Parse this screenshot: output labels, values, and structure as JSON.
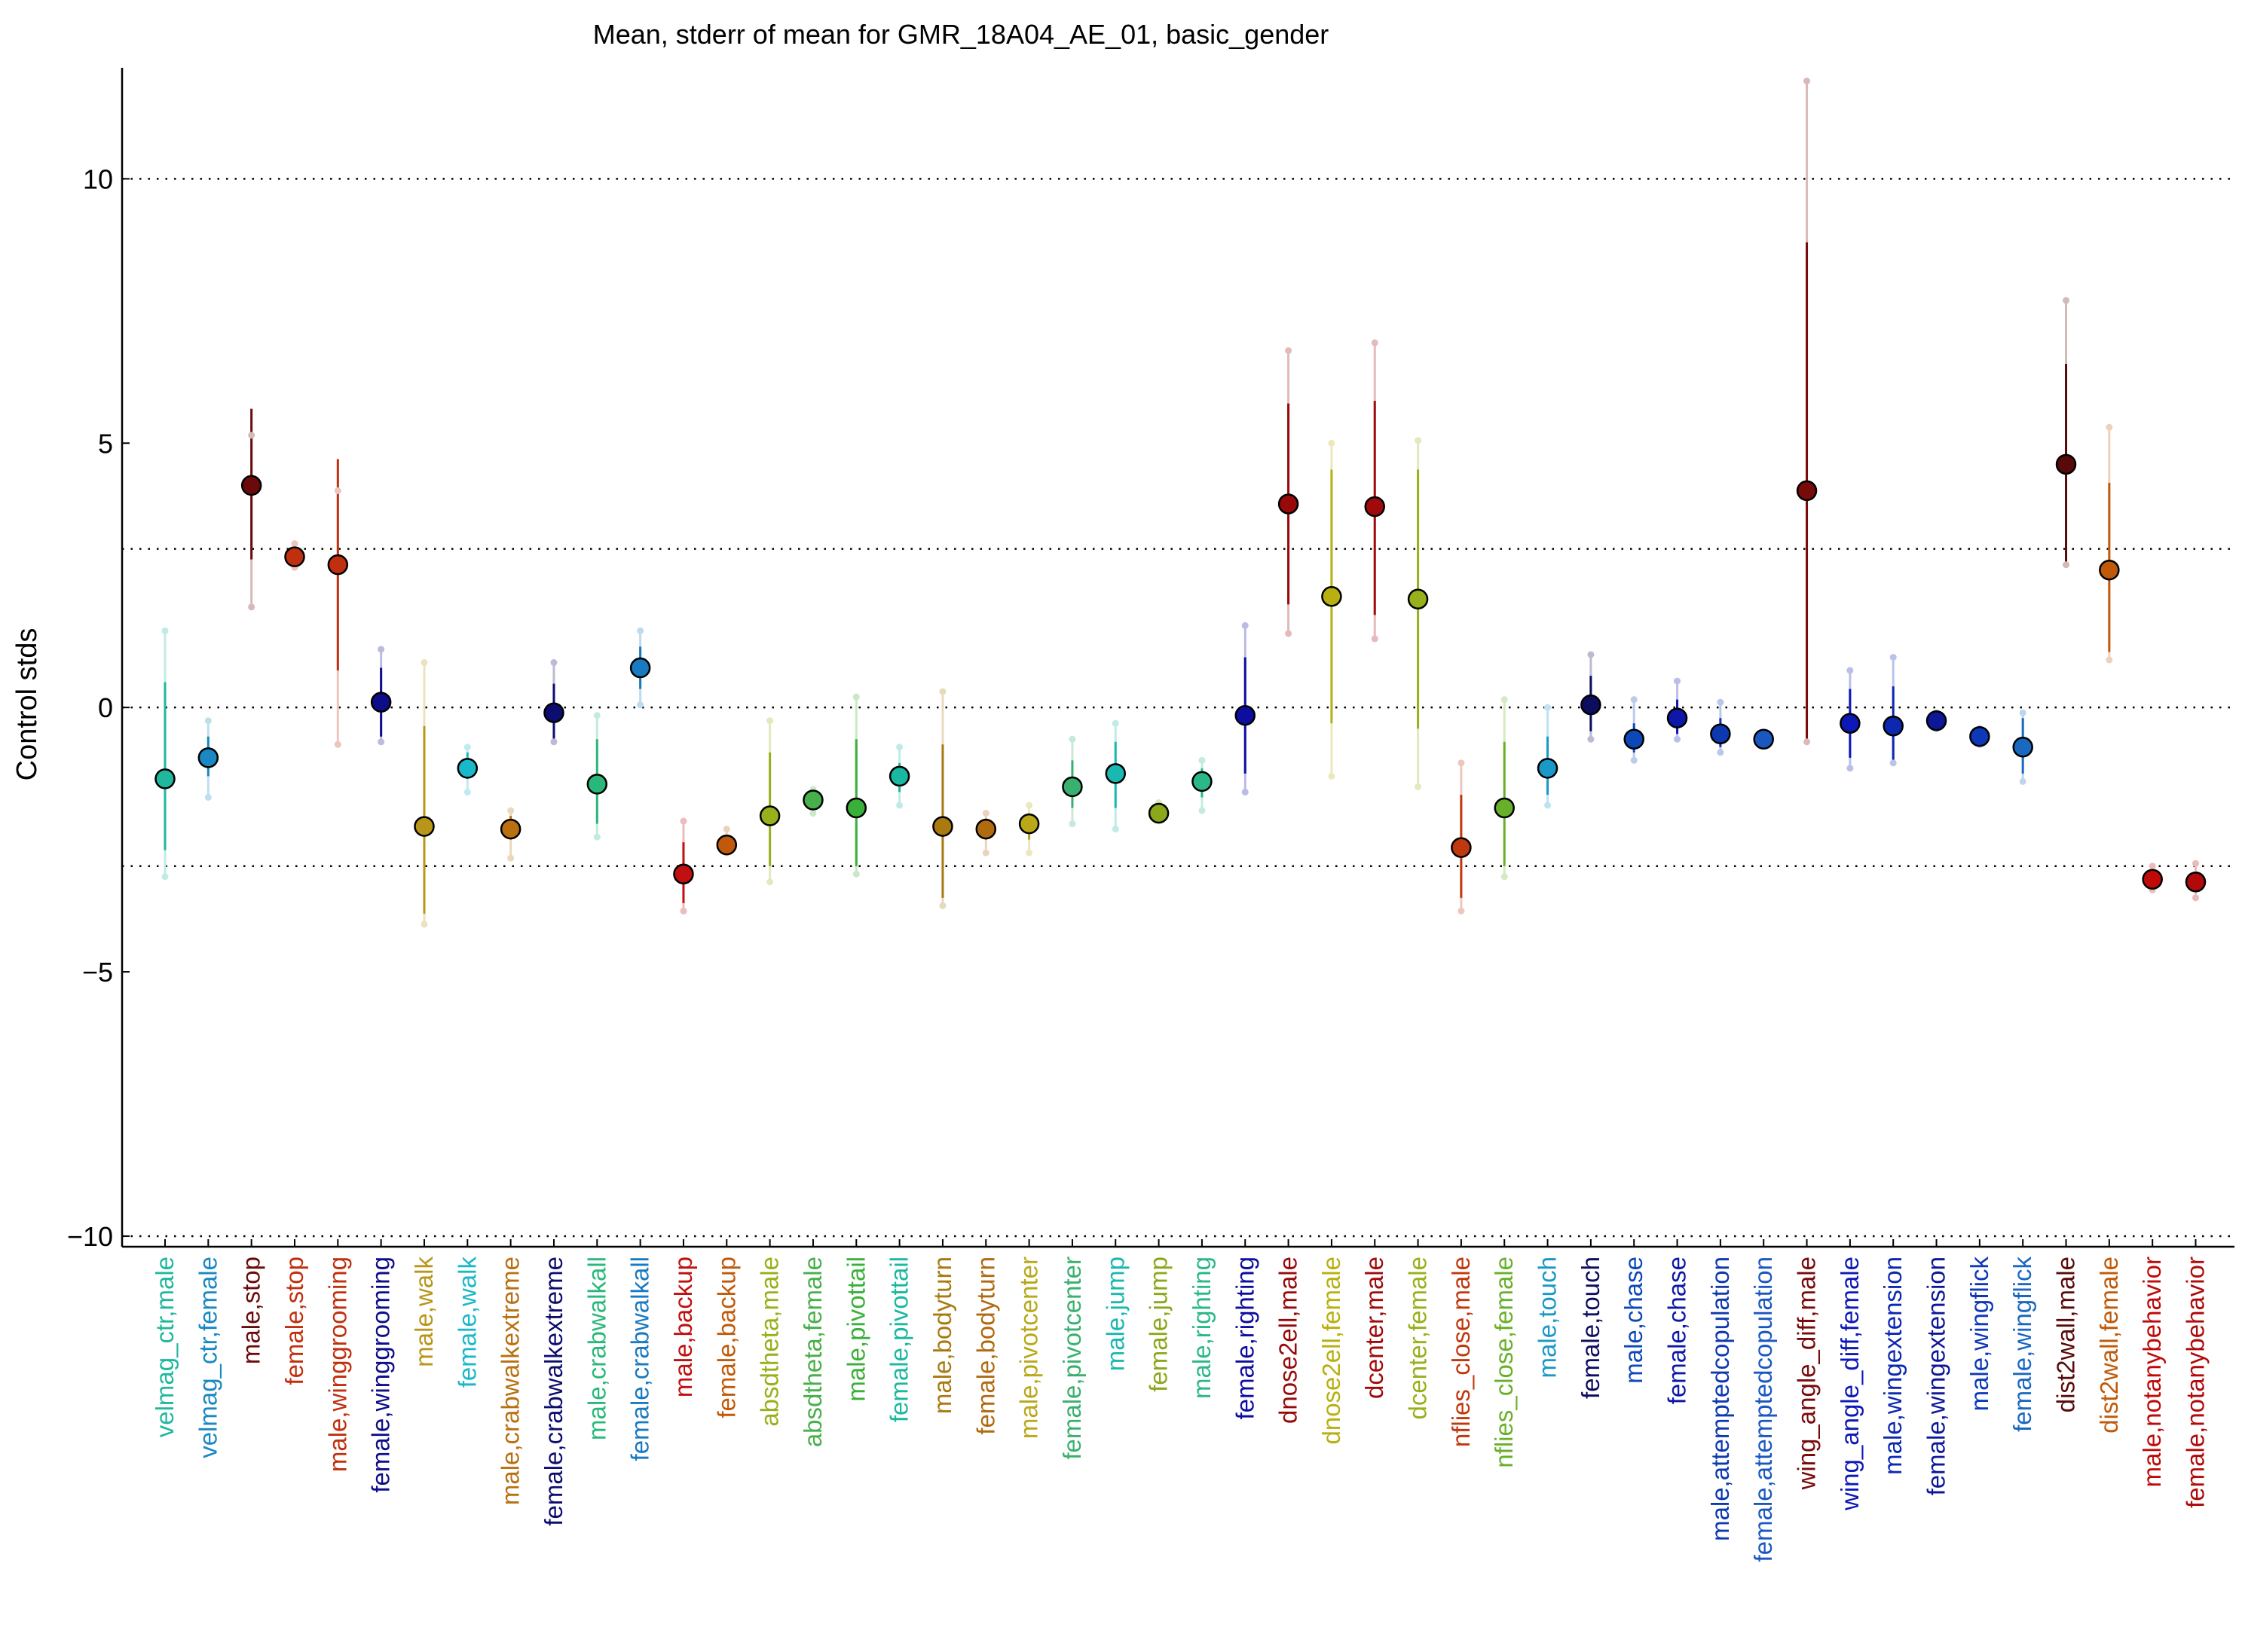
{
  "chart_data": {
    "type": "scatter",
    "title": "Mean, stderr of mean for GMR_18A04_AE_01, basic_gender",
    "xlabel": "",
    "ylabel": "Control stds",
    "ylim": [
      -10.2,
      12.1
    ],
    "yticks": [
      -10,
      -5,
      0,
      5,
      10
    ],
    "reference_lines": [
      -10,
      -3,
      0,
      3,
      10
    ],
    "grid": false,
    "legend": "none",
    "series": [
      {
        "label": "velmag_ctr,male",
        "color": "#1fb89e",
        "mean": -1.35,
        "se_low": -2.7,
        "se_high": 0.48,
        "range_low": -3.2,
        "range_high": 1.45
      },
      {
        "label": "velmag_ctr,female",
        "color": "#1a88c2",
        "mean": -0.95,
        "se_low": -1.3,
        "se_high": -0.55,
        "range_low": -1.7,
        "range_high": -0.25
      },
      {
        "label": "male,stop",
        "color": "#6b0a0a",
        "mean": 4.2,
        "se_low": 2.8,
        "se_high": 5.65,
        "range_low": 1.9,
        "range_high": 5.15
      },
      {
        "label": "female,stop",
        "color": "#c0300e",
        "mean": 2.85,
        "se_low": 2.75,
        "se_high": 3.0,
        "range_low": 2.65,
        "range_high": 3.1
      },
      {
        "label": "male,winggrooming",
        "color": "#c0300e",
        "mean": 2.7,
        "se_low": 0.7,
        "se_high": 4.7,
        "range_low": -0.7,
        "range_high": 4.1
      },
      {
        "label": "female,winggrooming",
        "color": "#0d0d8a",
        "mean": 0.1,
        "se_low": -0.55,
        "se_high": 0.75,
        "range_low": -0.65,
        "range_high": 1.1
      },
      {
        "label": "male,walk",
        "color": "#b8961a",
        "mean": -2.25,
        "se_low": -3.9,
        "se_high": -0.35,
        "range_low": -4.1,
        "range_high": 0.85
      },
      {
        "label": "female,walk",
        "color": "#1ab8c8",
        "mean": -1.15,
        "se_low": -1.35,
        "se_high": -0.85,
        "range_low": -1.6,
        "range_high": -0.75
      },
      {
        "label": "male,crabwalkextreme",
        "color": "#b87010",
        "mean": -2.3,
        "se_low": -2.5,
        "se_high": -2.05,
        "range_low": -2.85,
        "range_high": -1.95
      },
      {
        "label": "female,crabwalkextreme",
        "color": "#0d0d70",
        "mean": -0.1,
        "se_low": -0.65,
        "se_high": 0.45,
        "range_low": -0.65,
        "range_high": 0.85
      },
      {
        "label": "male,crabwalkall",
        "color": "#2ab87a",
        "mean": -1.45,
        "se_low": -2.2,
        "se_high": -0.6,
        "range_low": -2.45,
        "range_high": -0.15
      },
      {
        "label": "female,crabwalkall",
        "color": "#1a7ac0",
        "mean": 0.75,
        "se_low": 0.35,
        "se_high": 1.15,
        "range_low": 0.05,
        "range_high": 1.45
      },
      {
        "label": "male,backup",
        "color": "#c01010",
        "mean": -3.15,
        "se_low": -3.7,
        "se_high": -2.55,
        "range_low": -3.85,
        "range_high": -2.15
      },
      {
        "label": "female,backup",
        "color": "#c05a0a",
        "mean": -2.6,
        "se_low": -2.7,
        "se_high": -2.5,
        "range_low": -2.75,
        "range_high": -2.3
      },
      {
        "label": "absdtheta,male",
        "color": "#98b01a",
        "mean": -2.05,
        "se_low": -3.0,
        "se_high": -0.85,
        "range_low": -3.3,
        "range_high": -0.25
      },
      {
        "label": "absdtheta,female",
        "color": "#48b04a",
        "mean": -1.75,
        "se_low": -1.85,
        "se_high": -1.65,
        "range_low": -2.0,
        "range_high": -1.55
      },
      {
        "label": "male,pivottail",
        "color": "#3ab03a",
        "mean": -1.9,
        "se_low": -3.0,
        "se_high": -0.6,
        "range_low": -3.15,
        "range_high": 0.2
      },
      {
        "label": "female,pivottail",
        "color": "#1ab8a0",
        "mean": -1.3,
        "se_low": -1.6,
        "se_high": -1.05,
        "range_low": -1.85,
        "range_high": -0.75
      },
      {
        "label": "male,bodyturn",
        "color": "#a87a10",
        "mean": -2.25,
        "se_low": -3.6,
        "se_high": -0.7,
        "range_low": -3.75,
        "range_high": 0.3
      },
      {
        "label": "female,bodyturn",
        "color": "#b06a10",
        "mean": -2.3,
        "se_low": -2.5,
        "se_high": -2.1,
        "range_low": -2.75,
        "range_high": -2.0
      },
      {
        "label": "male,pivotcenter",
        "color": "#b8a81a",
        "mean": -2.2,
        "se_low": -2.5,
        "se_high": -2.0,
        "range_low": -2.75,
        "range_high": -1.85
      },
      {
        "label": "female,pivotcenter",
        "color": "#3ab070",
        "mean": -1.5,
        "se_low": -1.9,
        "se_high": -1.0,
        "range_low": -2.2,
        "range_high": -0.6
      },
      {
        "label": "male,jump",
        "color": "#1ab8b0",
        "mean": -1.25,
        "se_low": -1.9,
        "se_high": -0.65,
        "range_low": -2.3,
        "range_high": -0.3
      },
      {
        "label": "female,jump",
        "color": "#8aa81a",
        "mean": -2.0,
        "se_low": -2.05,
        "se_high": -1.9,
        "range_low": -2.15,
        "range_high": -1.8
      },
      {
        "label": "male,righting",
        "color": "#2ab88a",
        "mean": -1.4,
        "se_low": -1.7,
        "se_high": -1.15,
        "range_low": -1.95,
        "range_high": -1.0
      },
      {
        "label": "female,righting",
        "color": "#0d0da0",
        "mean": -0.15,
        "se_low": -1.25,
        "se_high": 0.95,
        "range_low": -1.6,
        "range_high": 1.55
      },
      {
        "label": "dnose2ell,male",
        "color": "#980a0a",
        "mean": 3.85,
        "se_low": 1.95,
        "se_high": 5.75,
        "range_low": 1.4,
        "range_high": 6.75
      },
      {
        "label": "dnose2ell,female",
        "color": "#b8b010",
        "mean": 2.1,
        "se_low": -0.3,
        "se_high": 4.5,
        "range_low": -1.3,
        "range_high": 5.0
      },
      {
        "label": "dcenter,male",
        "color": "#a00a0a",
        "mean": 3.8,
        "se_low": 1.75,
        "se_high": 5.8,
        "range_low": 1.3,
        "range_high": 6.9
      },
      {
        "label": "dcenter,female",
        "color": "#98b01a",
        "mean": 2.05,
        "se_low": -0.4,
        "se_high": 4.5,
        "range_low": -1.5,
        "range_high": 5.05
      },
      {
        "label": "nflies_close,male",
        "color": "#c0380e",
        "mean": -2.65,
        "se_low": -3.6,
        "se_high": -1.65,
        "range_low": -3.85,
        "range_high": -1.05
      },
      {
        "label": "nflies_close,female",
        "color": "#68b02a",
        "mean": -1.9,
        "se_low": -3.0,
        "se_high": -0.65,
        "range_low": -3.2,
        "range_high": 0.15
      },
      {
        "label": "male,touch",
        "color": "#1a98c8",
        "mean": -1.15,
        "se_low": -1.65,
        "se_high": -0.55,
        "range_low": -1.85,
        "range_high": 0.0
      },
      {
        "label": "female,touch",
        "color": "#0d0d60",
        "mean": 0.05,
        "se_low": -0.45,
        "se_high": 0.6,
        "range_low": -0.6,
        "range_high": 1.0
      },
      {
        "label": "male,chase",
        "color": "#0d48b8",
        "mean": -0.6,
        "se_low": -0.85,
        "se_high": -0.3,
        "range_low": -1.0,
        "range_high": 0.15
      },
      {
        "label": "female,chase",
        "color": "#0d18a8",
        "mean": -0.2,
        "se_low": -0.5,
        "se_high": 0.15,
        "range_low": -0.6,
        "range_high": 0.5
      },
      {
        "label": "male,attemptedcopulation",
        "color": "#0d38b0",
        "mean": -0.5,
        "se_low": -0.75,
        "se_high": -0.2,
        "range_low": -0.85,
        "range_high": 0.1
      },
      {
        "label": "female,attemptedcopulation",
        "color": "#1a58c0",
        "mean": -0.6,
        "se_low": -0.65,
        "se_high": -0.55,
        "range_low": -0.7,
        "range_high": -0.5
      },
      {
        "label": "wing_angle_diff,male",
        "color": "#780a0a",
        "mean": 4.1,
        "se_low": -0.6,
        "se_high": 8.8,
        "range_low": -0.65,
        "range_high": 11.85
      },
      {
        "label": "wing_angle_diff,female",
        "color": "#0d18b8",
        "mean": -0.3,
        "se_low": -0.95,
        "se_high": 0.35,
        "range_low": -1.15,
        "range_high": 0.7
      },
      {
        "label": "male,wingextension",
        "color": "#0d28b0",
        "mean": -0.35,
        "se_low": -1.05,
        "se_high": 0.4,
        "range_low": -1.05,
        "range_high": 0.95
      },
      {
        "label": "female,wingextension",
        "color": "#0d1898",
        "mean": -0.25,
        "se_low": -0.35,
        "se_high": -0.15,
        "range_low": -0.4,
        "range_high": -0.1
      },
      {
        "label": "male,wingflick",
        "color": "#0d38b8",
        "mean": -0.55,
        "se_low": -0.65,
        "se_high": -0.45,
        "range_low": -0.7,
        "range_high": -0.4
      },
      {
        "label": "female,wingflick",
        "color": "#1a68c0",
        "mean": -0.75,
        "se_low": -1.25,
        "se_high": -0.2,
        "range_low": -1.4,
        "range_high": -0.1
      },
      {
        "label": "dist2wall,male",
        "color": "#580a0a",
        "mean": 4.6,
        "se_low": 2.7,
        "se_high": 6.5,
        "range_low": 2.7,
        "range_high": 7.7
      },
      {
        "label": "dist2wall,female",
        "color": "#c05a0a",
        "mean": 2.6,
        "se_low": 1.05,
        "se_high": 4.25,
        "range_low": 0.9,
        "range_high": 5.3
      },
      {
        "label": "male,notanybehavior",
        "color": "#c00a0a",
        "mean": -3.25,
        "se_low": -3.35,
        "se_high": -3.15,
        "range_low": -3.45,
        "range_high": -3.0
      },
      {
        "label": "female,notanybehavior",
        "color": "#b00a0a",
        "mean": -3.3,
        "se_low": -3.45,
        "se_high": -3.15,
        "range_low": -3.6,
        "range_high": -2.95
      }
    ]
  }
}
